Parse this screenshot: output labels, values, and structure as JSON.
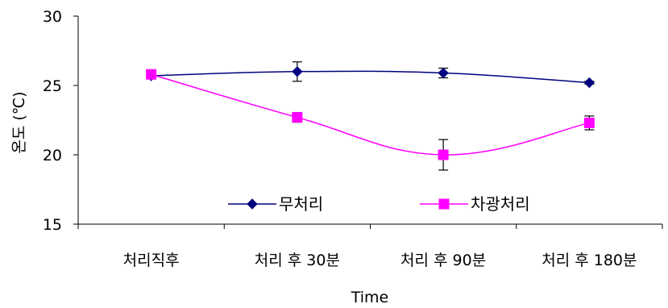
{
  "chart_data": {
    "type": "line",
    "title": "",
    "xlabel": "Time",
    "ylabel": "온도 (℃)",
    "ylim": [
      15,
      30
    ],
    "yticks": [
      15,
      20,
      25,
      30
    ],
    "grid": false,
    "legend_position": "bottom-center (inside plot)",
    "categories": [
      "처리직후",
      "처리 후 30분",
      "처리 후 90분",
      "처리 후 180분"
    ],
    "series": [
      {
        "name": "무처리",
        "color": "#000080",
        "marker": "diamond",
        "values": [
          25.7,
          26.0,
          25.9,
          25.2
        ],
        "error": [
          0.2,
          0.7,
          0.35,
          0.1
        ]
      },
      {
        "name": "차광처리",
        "color": "#ff00ff",
        "marker": "square",
        "values": [
          25.8,
          22.7,
          20.0,
          22.3
        ],
        "error": [
          0.2,
          0.35,
          1.1,
          0.5
        ]
      }
    ]
  }
}
